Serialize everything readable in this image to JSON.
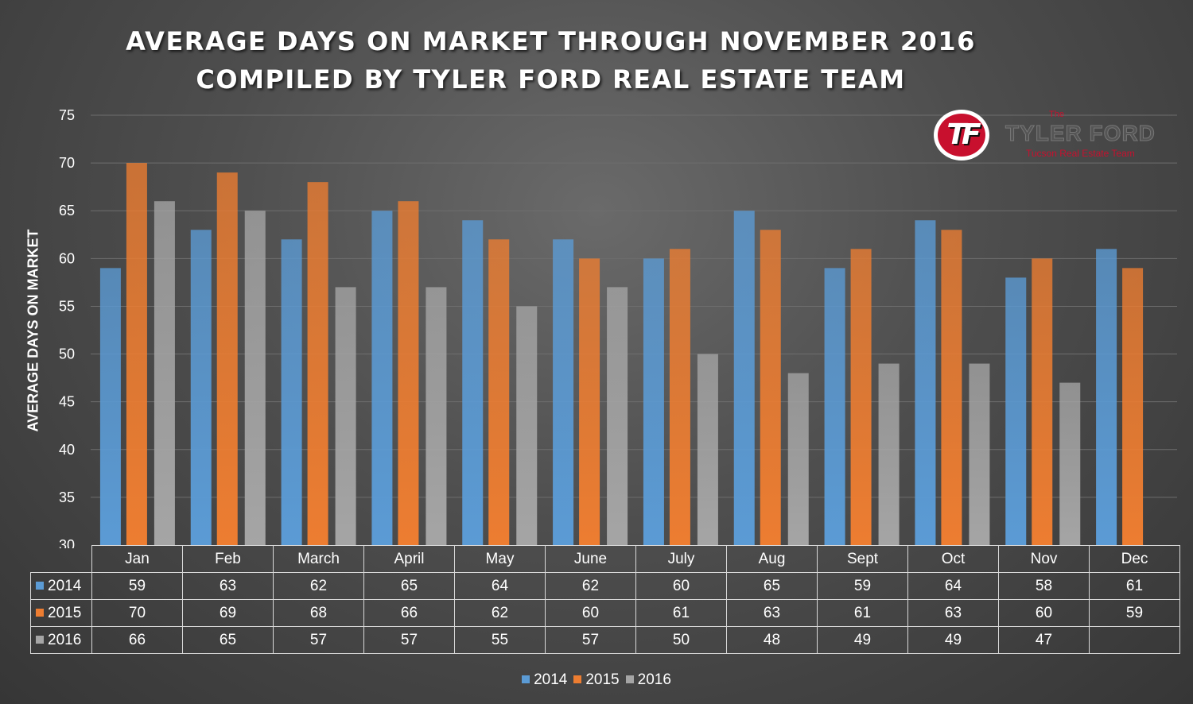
{
  "chart_data": {
    "type": "bar",
    "title": [
      "AVERAGE DAYS ON MARKET THROUGH NOVEMBER 2016",
      "COMPILED BY TYLER FORD REAL ESTATE TEAM"
    ],
    "xlabel": "",
    "ylabel": "AVERAGE DAYS ON MARKET",
    "ylim": [
      30,
      75
    ],
    "yticks": [
      "30",
      "35",
      "40",
      "45",
      "50",
      "55",
      "60",
      "65",
      "70",
      "75"
    ],
    "grid": true,
    "legend_position": "bottom",
    "categories": [
      "Jan",
      "Feb",
      "March",
      "April",
      "May",
      "June",
      "July",
      "Aug",
      "Sept",
      "Oct",
      "Nov",
      "Dec"
    ],
    "series": [
      {
        "name": "2014",
        "color": "#5b9bd5",
        "values": [
          59,
          63,
          62,
          65,
          64,
          62,
          60,
          65,
          59,
          64,
          58,
          61
        ]
      },
      {
        "name": "2015",
        "color": "#ed7d31",
        "values": [
          70,
          69,
          68,
          66,
          62,
          60,
          61,
          63,
          61,
          63,
          60,
          59
        ]
      },
      {
        "name": "2016",
        "color": "#a5a5a5",
        "values": [
          66,
          65,
          57,
          57,
          55,
          57,
          50,
          48,
          49,
          49,
          47,
          null
        ]
      }
    ],
    "table": {
      "rows": [
        {
          "label": "2014",
          "cells": [
            "59",
            "63",
            "62",
            "65",
            "64",
            "62",
            "60",
            "65",
            "59",
            "64",
            "58",
            "61"
          ]
        },
        {
          "label": "2015",
          "cells": [
            "70",
            "69",
            "68",
            "66",
            "62",
            "60",
            "61",
            "63",
            "61",
            "63",
            "60",
            "59"
          ]
        },
        {
          "label": "2016",
          "cells": [
            "66",
            "65",
            "57",
            "57",
            "55",
            "57",
            "50",
            "48",
            "49",
            "49",
            "47",
            ""
          ]
        }
      ]
    }
  },
  "logo": {
    "initials": "TF",
    "the": "The",
    "name": "TYLER FORD",
    "tagline": "Tucson Real Estate Team"
  },
  "colors": {
    "background": "#4e4e4e",
    "gridline": "#6e6e6e",
    "brand_red": "#c8102e"
  }
}
